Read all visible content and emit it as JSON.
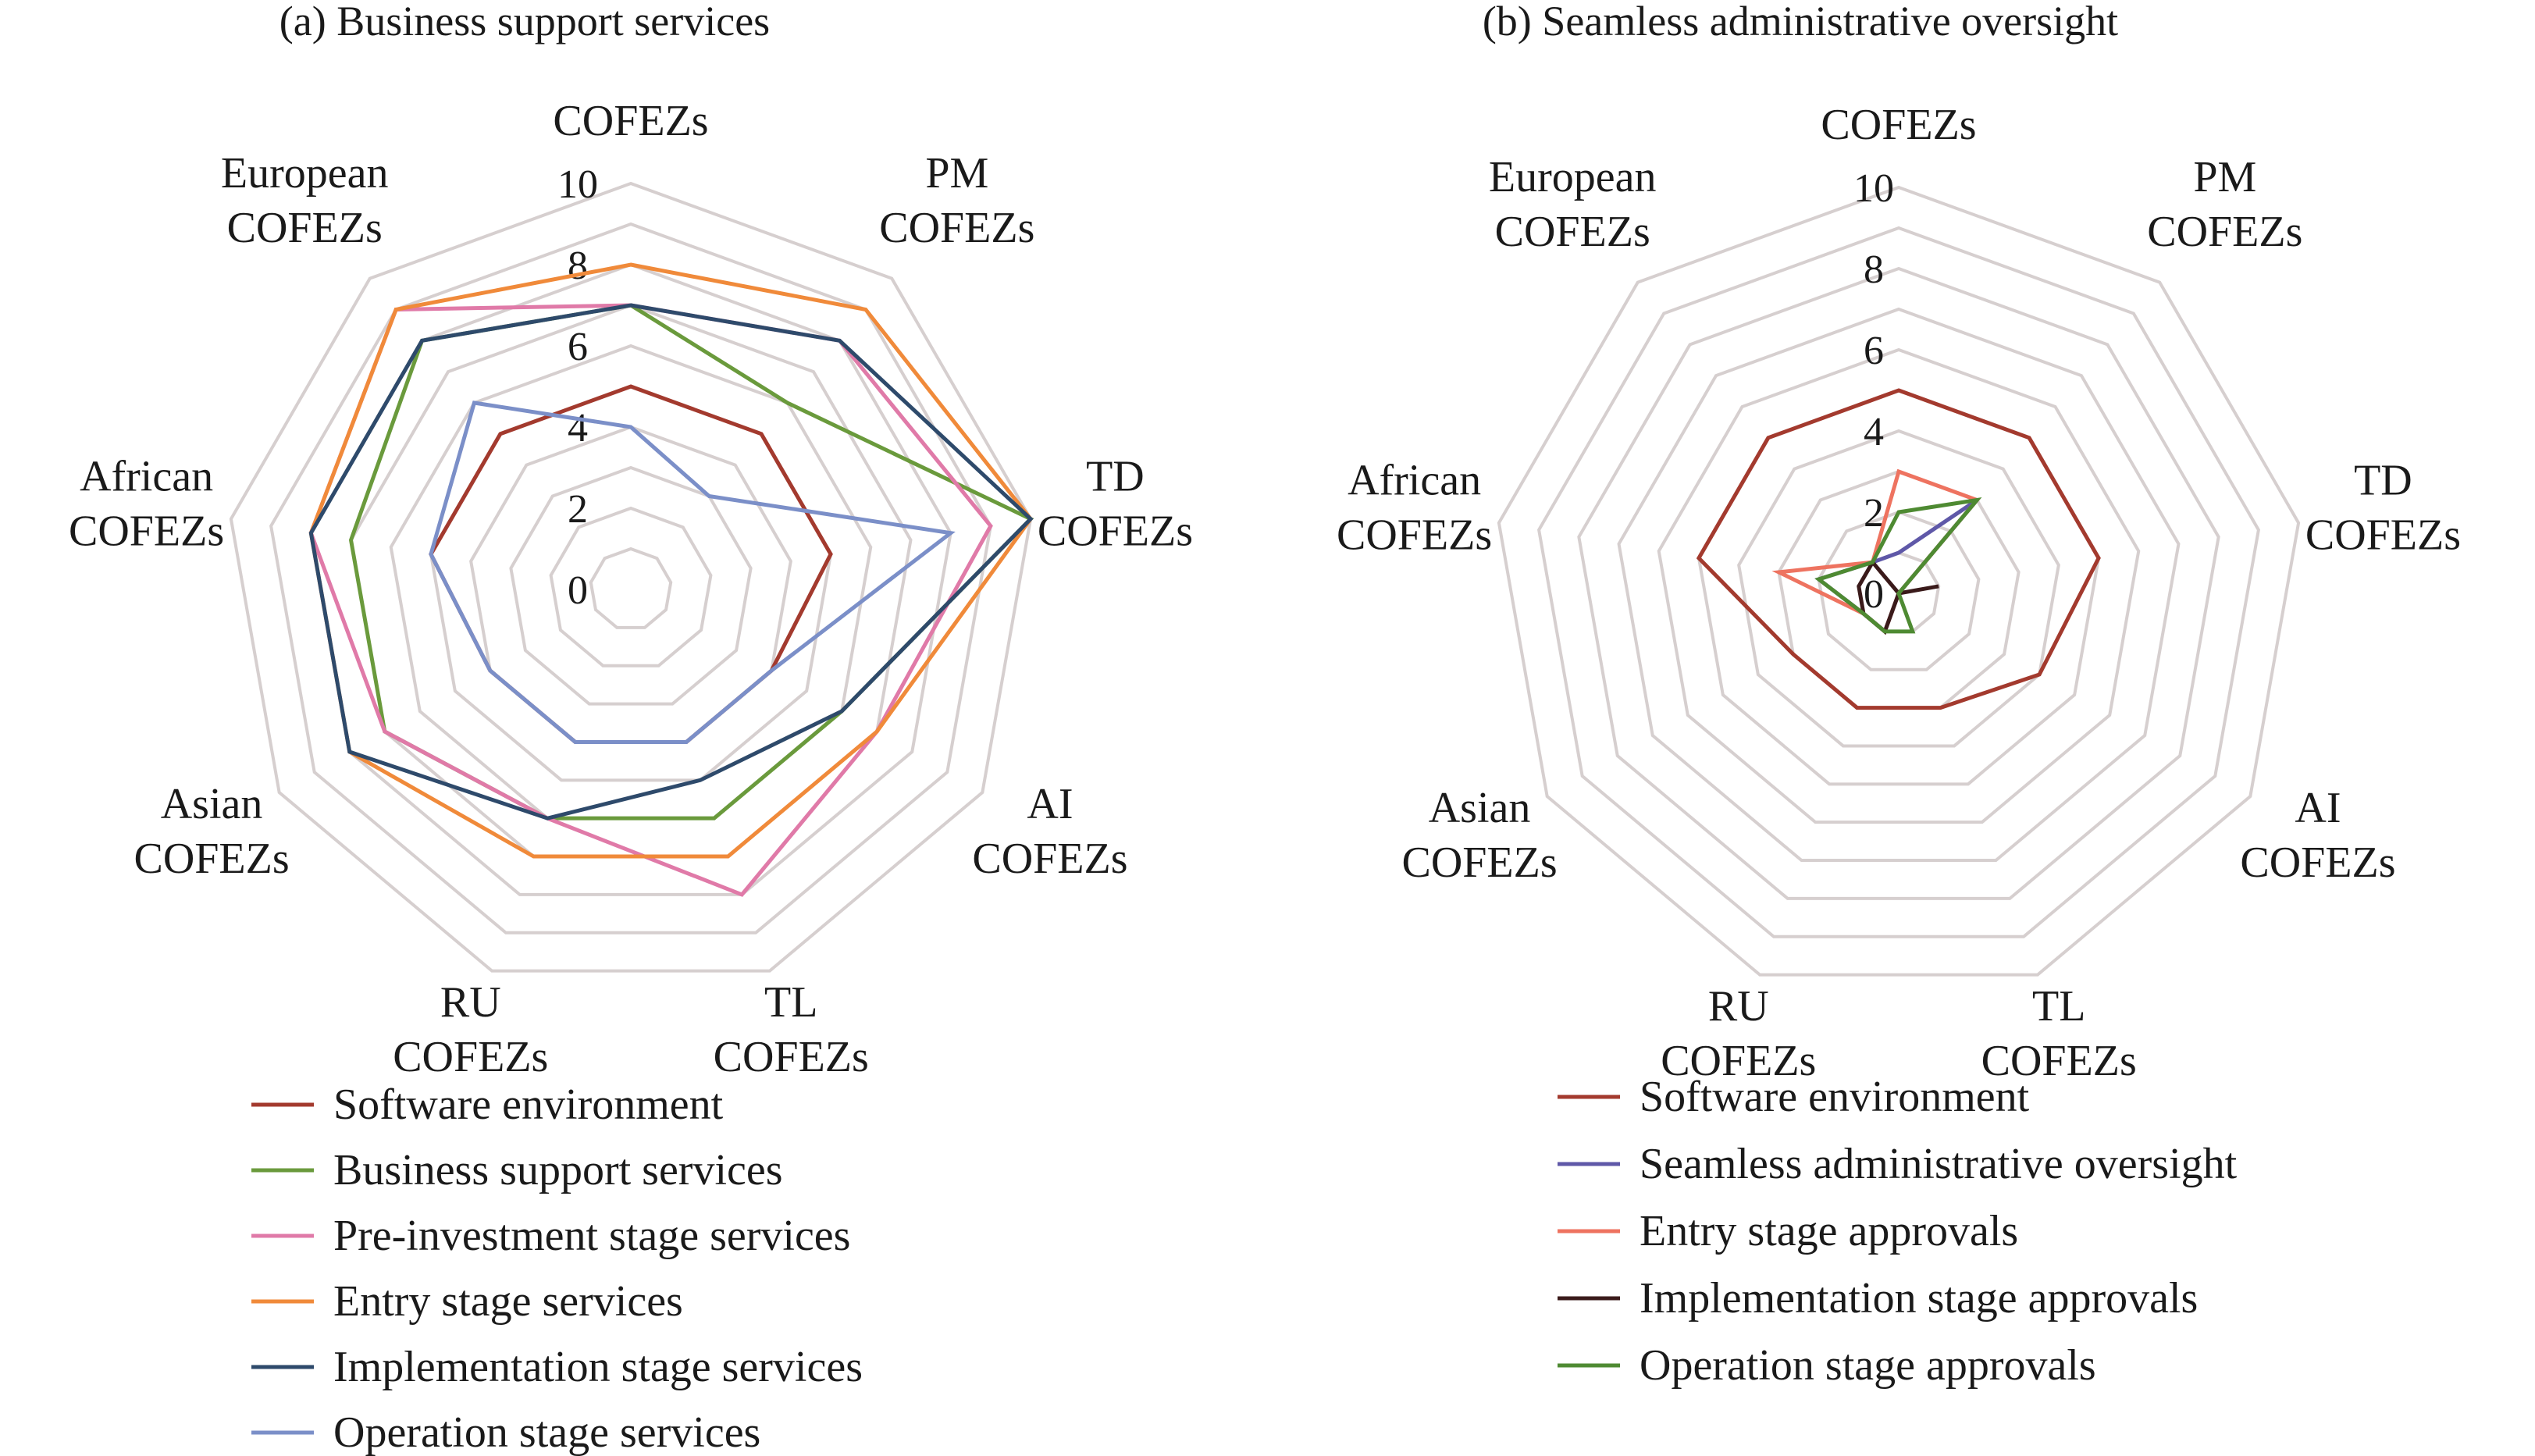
{
  "chart_data": [
    {
      "type": "radar",
      "title": "(a) Business support services",
      "categories": [
        [
          "COFEZs"
        ],
        [
          "PM",
          "COFEZs"
        ],
        [
          "TD",
          "COFEZs"
        ],
        [
          "AI",
          "COFEZs"
        ],
        [
          "TL",
          "COFEZs"
        ],
        [
          "RU",
          "COFEZs"
        ],
        [
          "Asian",
          "COFEZs"
        ],
        [
          "African",
          "COFEZs"
        ],
        [
          "European",
          "COFEZs"
        ]
      ],
      "rlim": [
        0,
        10
      ],
      "ticks": [
        "0",
        "2",
        "4",
        "6",
        "8",
        "10"
      ],
      "grid": true,
      "legend_position": "bottom",
      "series": [
        {
          "name": "Software environment",
          "color": "#a33a2e",
          "values": [
            5,
            5,
            5,
            4,
            4,
            4,
            4,
            5,
            5
          ]
        },
        {
          "name": "Business support services",
          "color": "#6a9a3c",
          "values": [
            7,
            6,
            10,
            6,
            6,
            6,
            7,
            7,
            8
          ]
        },
        {
          "name": "Pre-investment stage services",
          "color": "#e07aa8",
          "values": [
            7,
            8,
            9,
            7,
            8,
            6,
            7,
            8,
            9
          ]
        },
        {
          "name": "Entry stage services",
          "color": "#f08a3a",
          "values": [
            8,
            9,
            10,
            7,
            7,
            7,
            8,
            8,
            9
          ]
        },
        {
          "name": "Implementation stage services",
          "color": "#2e4a6b",
          "values": [
            7,
            8,
            10,
            6,
            5,
            6,
            8,
            8,
            8
          ]
        },
        {
          "name": "Operation stage services",
          "color": "#7b8fc8",
          "values": [
            4,
            3,
            8,
            4,
            4,
            4,
            4,
            5,
            6
          ]
        }
      ]
    },
    {
      "type": "radar",
      "title": "(b) Seamless administrative oversight",
      "categories": [
        [
          "COFEZs"
        ],
        [
          "PM",
          "COFEZs"
        ],
        [
          "TD",
          "COFEZs"
        ],
        [
          "AI",
          "COFEZs"
        ],
        [
          "TL",
          "COFEZs"
        ],
        [
          "RU",
          "COFEZs"
        ],
        [
          "Asian",
          "COFEZs"
        ],
        [
          "African",
          "COFEZs"
        ],
        [
          "European",
          "COFEZs"
        ]
      ],
      "rlim": [
        0,
        10
      ],
      "ticks": [
        "0",
        "2",
        "4",
        "6",
        "8",
        "10"
      ],
      "grid": true,
      "legend_position": "bottom",
      "series": [
        {
          "name": "Software environment",
          "color": "#a33a2e",
          "values": [
            5,
            5,
            5,
            4,
            3,
            3,
            3,
            5,
            5
          ]
        },
        {
          "name": "Seamless administrative oversight",
          "color": "#5f58a8",
          "values": [
            1,
            3,
            0,
            0,
            0,
            1,
            1,
            2,
            1
          ]
        },
        {
          "name": "Entry stage approvals",
          "color": "#ee7360",
          "values": [
            3,
            3,
            0,
            0,
            0,
            1,
            1,
            3,
            1
          ]
        },
        {
          "name": "Implementation stage approvals",
          "color": "#3a1a1a",
          "values": [
            0,
            0,
            1,
            0,
            0,
            1,
            1,
            1,
            1
          ]
        },
        {
          "name": "Operation stage approvals",
          "color": "#4e8a32",
          "values": [
            2,
            3,
            0,
            0,
            1,
            1,
            1,
            2,
            1
          ]
        }
      ]
    }
  ]
}
